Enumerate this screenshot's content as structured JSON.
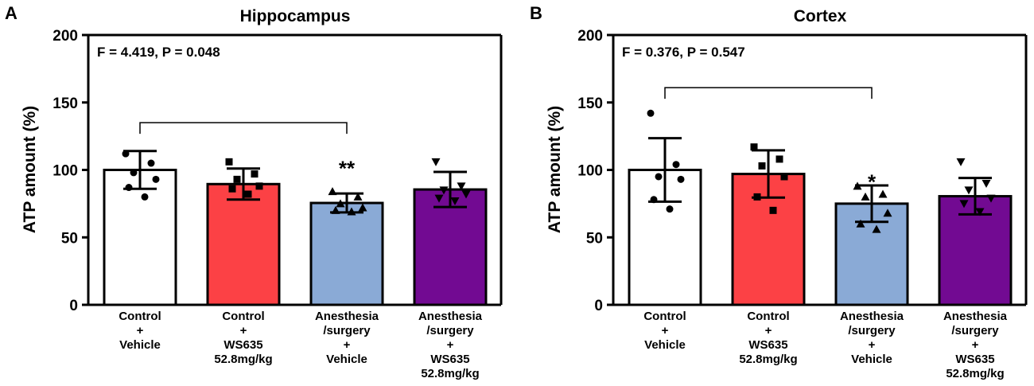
{
  "chart_data": [
    {
      "type": "bar",
      "panel": "A",
      "title": "Hippocampus",
      "stat_text": "F = 4.419, P = 0.048",
      "ylabel": "ATP amount (%)",
      "xlabel": "",
      "ylim": [
        0,
        200
      ],
      "yticks": [
        0,
        50,
        100,
        150,
        200
      ],
      "categories": [
        [
          "Control",
          "+",
          "Vehicle"
        ],
        [
          "Control",
          "+",
          "WS635",
          "52.8mg/kg"
        ],
        [
          "Anesthesia",
          "/surgery",
          "+",
          "Vehicle"
        ],
        [
          "Anesthesia",
          "/surgery",
          "+",
          "WS635",
          "52.8mg/kg"
        ]
      ],
      "values": [
        100,
        89.5,
        75.5,
        85.5
      ],
      "sd": [
        14,
        11.5,
        7,
        13
      ],
      "colors": [
        "#ffffff",
        "#fc4145",
        "#8aaad6",
        "#720a92"
      ],
      "markers": [
        "circle",
        "square",
        "triangle",
        "triangle-down"
      ],
      "points": [
        [
          112,
          105,
          98,
          93,
          87,
          80
        ],
        [
          106,
          97,
          93,
          88,
          86,
          82
        ],
        [
          84,
          80,
          75,
          72,
          70,
          69
        ],
        [
          106,
          88,
          85,
          82,
          79,
          77
        ]
      ],
      "bracket": {
        "from": 0,
        "to": 2,
        "y": 135
      },
      "significance": [
        {
          "index": 2,
          "label": "**",
          "y": 104
        }
      ]
    },
    {
      "type": "bar",
      "panel": "B",
      "title": "Cortex",
      "stat_text": "F = 0.376, P = 0.547",
      "ylabel": "ATP amount (%)",
      "xlabel": "",
      "ylim": [
        0,
        200
      ],
      "yticks": [
        0,
        50,
        100,
        150,
        200
      ],
      "categories": [
        [
          "Control",
          "+",
          "Vehicle"
        ],
        [
          "Control",
          "+",
          "WS635",
          "52.8mg/kg"
        ],
        [
          "Anesthesia",
          "/surgery",
          "+",
          "Vehicle"
        ],
        [
          "Anesthesia",
          "/surgery",
          "+",
          "WS635",
          "52.8mg/kg"
        ]
      ],
      "values": [
        100,
        97,
        75,
        80.5
      ],
      "sd": [
        23.5,
        17.5,
        13.5,
        13.5
      ],
      "colors": [
        "#ffffff",
        "#fc4145",
        "#8aaad6",
        "#720a92"
      ],
      "markers": [
        "circle",
        "square",
        "triangle",
        "triangle-down"
      ],
      "points": [
        [
          142,
          104,
          95,
          93,
          78,
          71
        ],
        [
          117,
          108,
          103,
          95,
          80,
          70
        ],
        [
          88,
          82,
          80,
          68,
          60,
          56
        ],
        [
          106,
          90,
          85,
          79,
          75,
          69
        ]
      ],
      "bracket": {
        "from": 0,
        "to": 2,
        "y": 161
      },
      "significance": [
        {
          "index": 2,
          "label": "*",
          "y": 94
        }
      ]
    }
  ]
}
